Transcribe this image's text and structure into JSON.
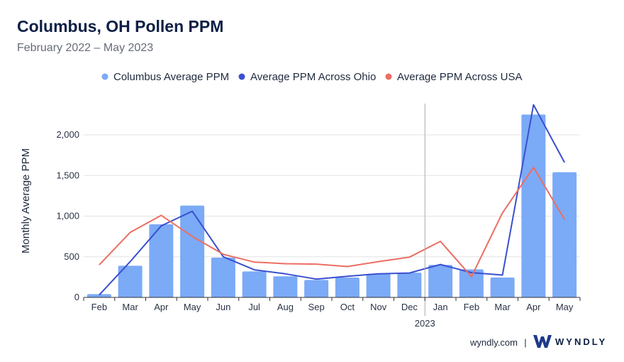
{
  "header": {
    "title": "Columbus, OH Pollen PPM",
    "subtitle": "February 2022 – May 2023"
  },
  "footer": {
    "site": "wyndly.com",
    "separator": "|",
    "brand": "WYNDLY"
  },
  "colors": {
    "bars": "#7baaf7",
    "ohio": "#3a4fcf",
    "usa": "#ec6e62",
    "grid": "#e3e3e3",
    "divider": "#aaaaaa"
  },
  "chart_data": {
    "type": "bar",
    "categories": [
      "Feb",
      "Mar",
      "Apr",
      "May",
      "Jun",
      "Jul",
      "Aug",
      "Sep",
      "Oct",
      "Nov",
      "Dec",
      "Jan",
      "Feb",
      "Mar",
      "Apr",
      "May"
    ],
    "year_marker": {
      "label": "2023",
      "before_index": 11
    },
    "ylabel": "Monthly Average PPM",
    "ylim": [
      0,
      2400
    ],
    "yticks": [
      0,
      500,
      1000,
      1500,
      2000
    ],
    "ytick_labels": [
      "0",
      "500",
      "1,000",
      "1,500",
      "2,000"
    ],
    "grid": true,
    "legend_position": "top",
    "series": [
      {
        "name": "Columbus Average PPM",
        "kind": "bar",
        "values": [
          40,
          390,
          900,
          1130,
          490,
          320,
          260,
          215,
          245,
          290,
          305,
          400,
          345,
          245,
          2250,
          1540
        ]
      },
      {
        "name": "Average PPM Across Ohio",
        "kind": "line",
        "values": [
          30,
          440,
          880,
          1060,
          500,
          340,
          290,
          225,
          260,
          290,
          300,
          405,
          305,
          275,
          2370,
          1660
        ]
      },
      {
        "name": "Average PPM Across USA",
        "kind": "line",
        "values": [
          400,
          800,
          1010,
          750,
          530,
          435,
          415,
          410,
          380,
          440,
          495,
          690,
          255,
          1040,
          1600,
          960
        ]
      }
    ]
  }
}
